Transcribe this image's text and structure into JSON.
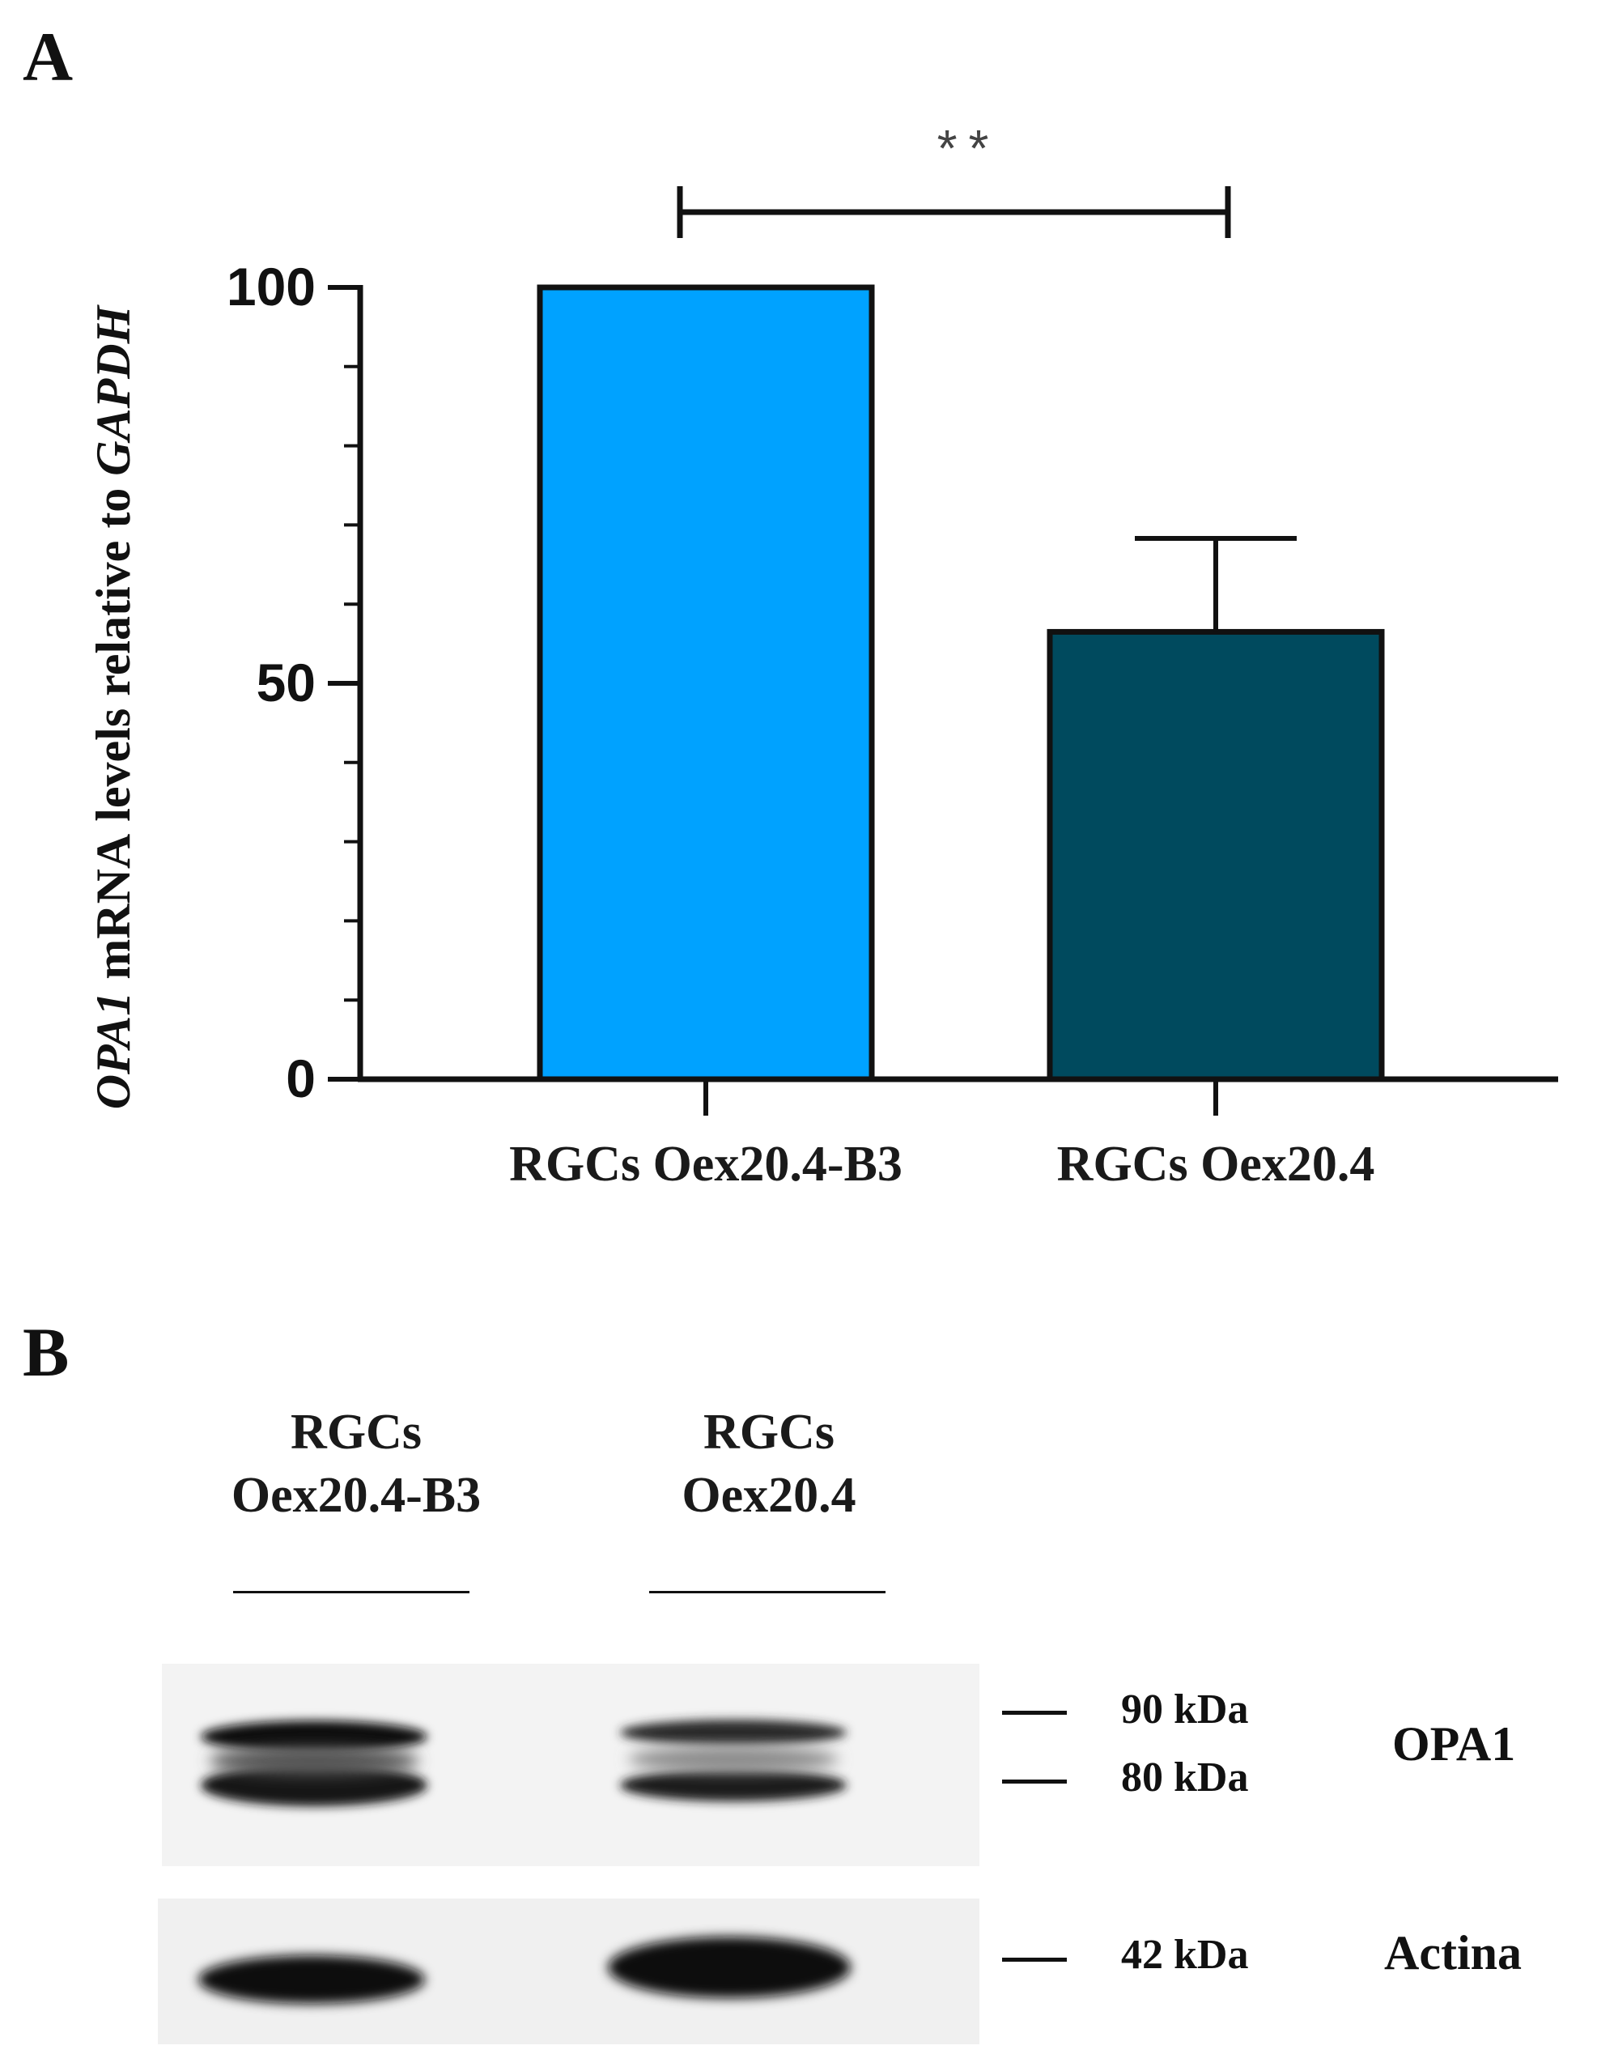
{
  "panel_a": {
    "label": "A"
  },
  "panel_b": {
    "label": "B"
  },
  "chart_data": {
    "type": "bar",
    "categories": [
      "RGCs Oex20.4-B3",
      "RGCs Oex20.4"
    ],
    "values": [
      100,
      56.5
    ],
    "error_upper": [
      0,
      11.8
    ],
    "colors": [
      "#00a2ff",
      "#004a5e"
    ],
    "ylabel_italic": "OPA1",
    "ylabel_mid": " mRNA levels relative to ",
    "ylabel_italic2": "GAPDH",
    "yticks": [
      "0",
      "50",
      "100"
    ],
    "ylim": [
      0,
      100
    ],
    "significance": {
      "label": "**",
      "between": [
        0,
        1
      ]
    }
  },
  "blot": {
    "lanes": [
      {
        "line1": "RGCs",
        "line2": "Oex20.4-B3"
      },
      {
        "line1": "RGCs",
        "line2": "Oex20.4"
      }
    ],
    "markers": {
      "m90": "90 kDa",
      "m80": "80 kDa",
      "m42": "42 kDa"
    },
    "proteins": {
      "opa1": "OPA1",
      "actin": "Actina"
    }
  }
}
